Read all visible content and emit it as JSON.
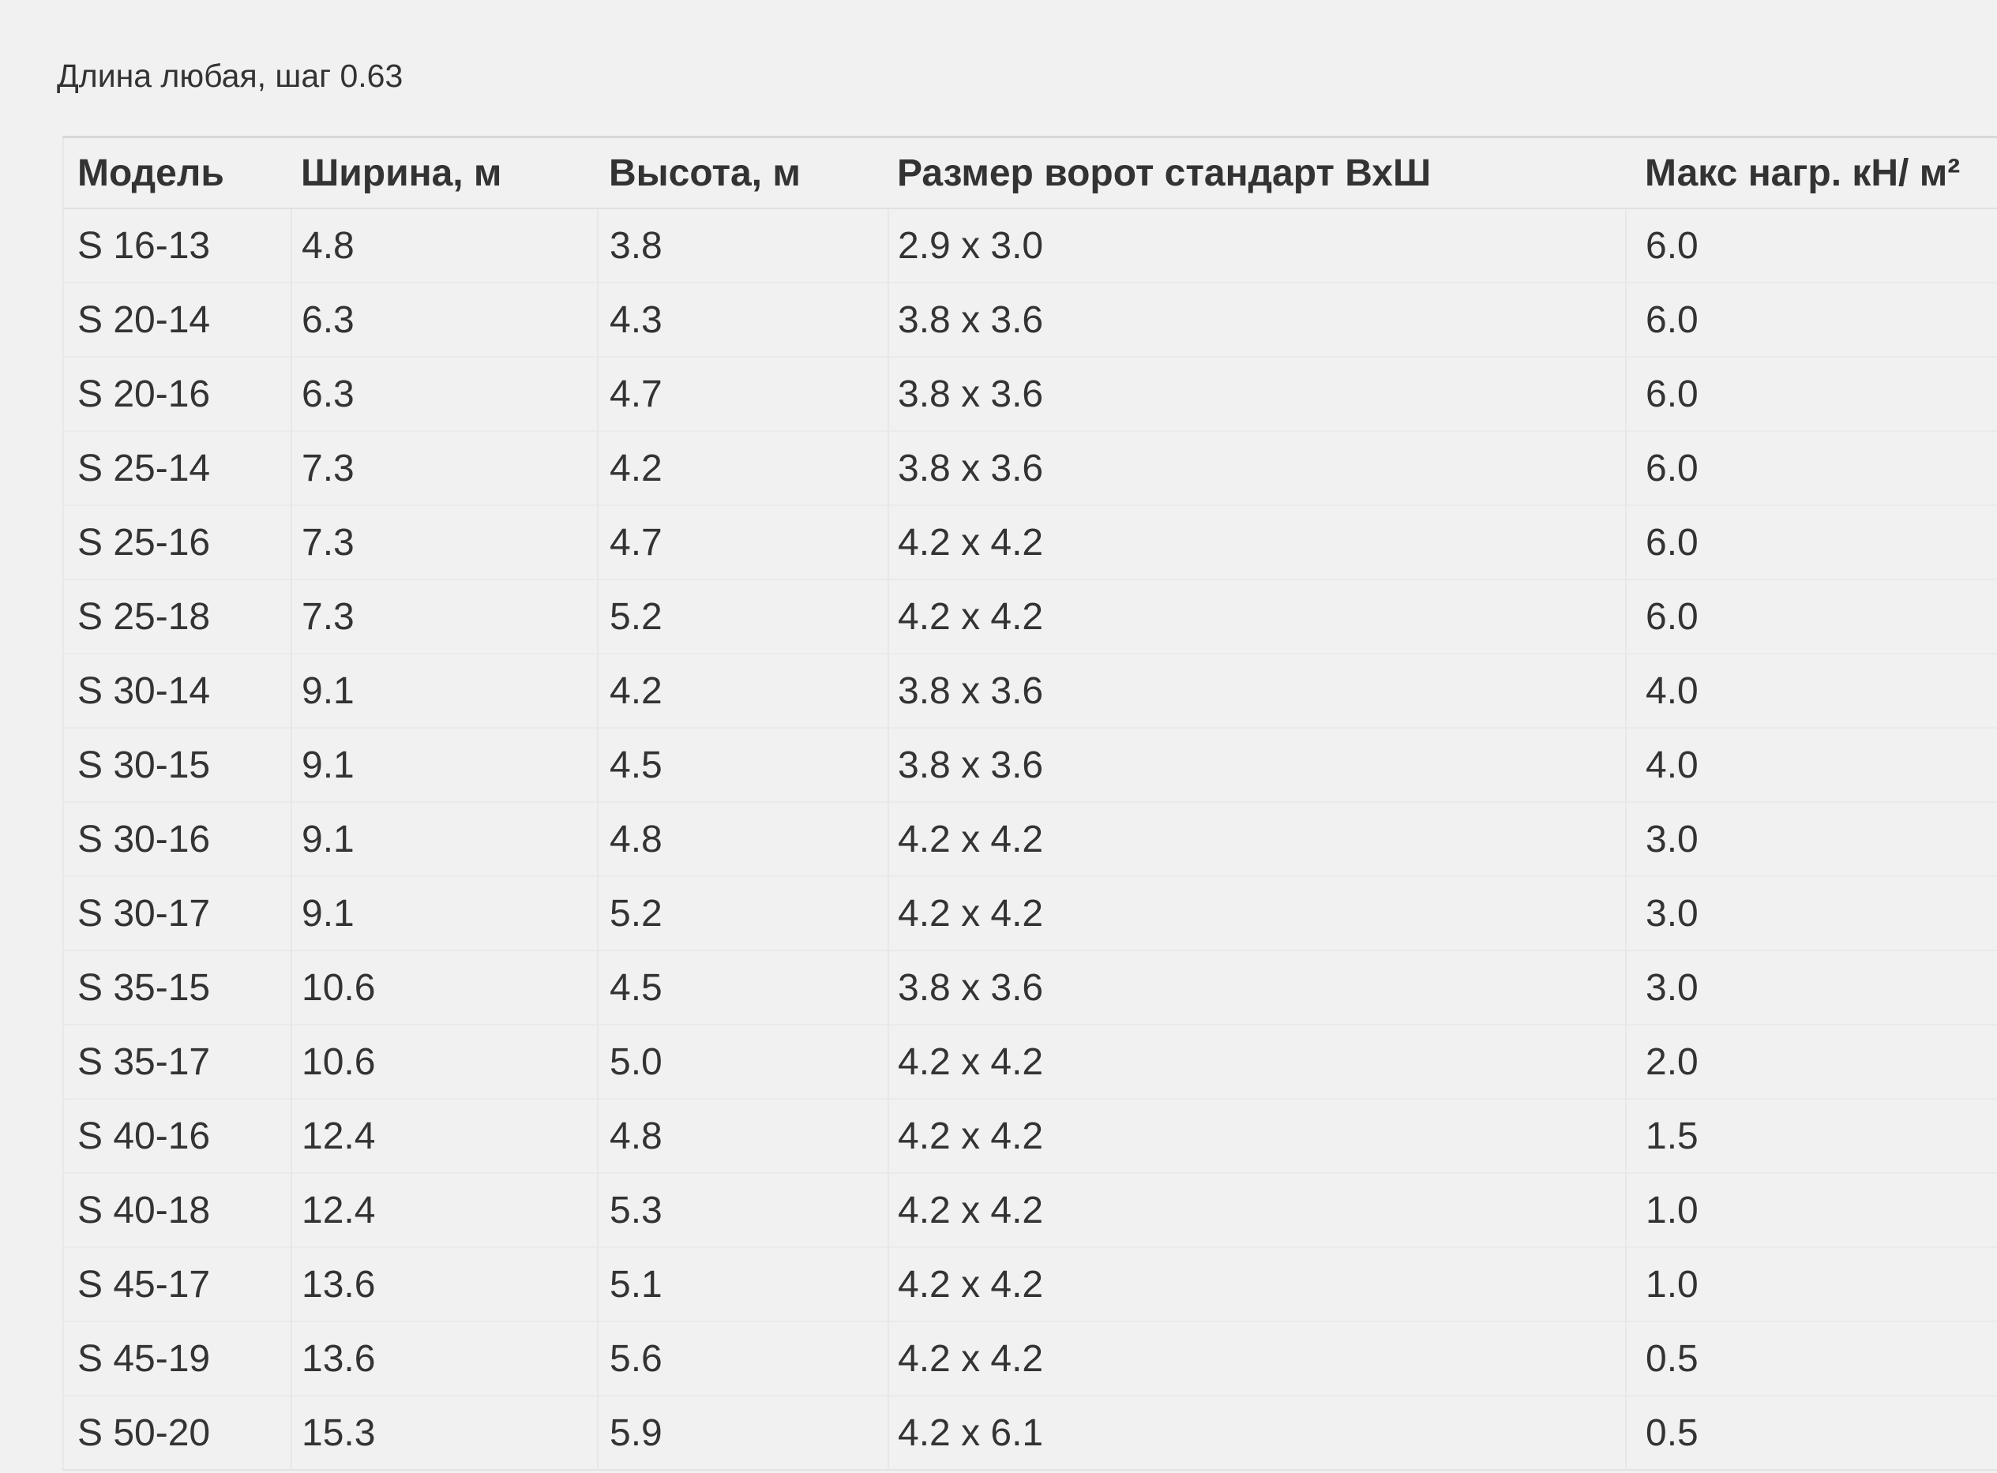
{
  "page": {
    "note": "Длина любая, шаг 0.63"
  },
  "colors": {
    "background": "#f1f1f1",
    "text": "#333333",
    "table_top_border": "#d8d8d8",
    "table_inner_border": "#e7e7e7"
  },
  "table": {
    "columns": [
      "Модель",
      "Ширина, м",
      "Высота, м",
      "Размер ворот стандарт ВхШ",
      "Макс нагр. кН/ м²"
    ],
    "rows": [
      [
        "S 16-13",
        "4.8",
        "3.8",
        "2.9 x 3.0",
        "6.0"
      ],
      [
        "S 20-14",
        "6.3",
        "4.3",
        "3.8 x 3.6",
        "6.0"
      ],
      [
        "S 20-16",
        "6.3",
        "4.7",
        "3.8 x 3.6",
        "6.0"
      ],
      [
        "S 25-14",
        "7.3",
        "4.2",
        "3.8 x 3.6",
        "6.0"
      ],
      [
        "S 25-16",
        "7.3",
        "4.7",
        "4.2 x 4.2",
        "6.0"
      ],
      [
        "S 25-18",
        "7.3",
        "5.2",
        "4.2 x 4.2",
        "6.0"
      ],
      [
        "S 30-14",
        "9.1",
        "4.2",
        "3.8 x 3.6",
        "4.0"
      ],
      [
        "S 30-15",
        "9.1",
        "4.5",
        "3.8 x 3.6",
        "4.0"
      ],
      [
        "S 30-16",
        "9.1",
        "4.8",
        "4.2 x 4.2",
        "3.0"
      ],
      [
        "S 30-17",
        "9.1",
        "5.2",
        "4.2 x 4.2",
        "3.0"
      ],
      [
        "S 35-15",
        "10.6",
        "4.5",
        "3.8 x 3.6",
        "3.0"
      ],
      [
        "S 35-17",
        "10.6",
        "5.0",
        "4.2 x 4.2",
        "2.0"
      ],
      [
        "S 40-16",
        "12.4",
        "4.8",
        "4.2 x 4.2",
        "1.5"
      ],
      [
        "S 40-18",
        "12.4",
        "5.3",
        "4.2 x 4.2",
        "1.0"
      ],
      [
        "S 45-17",
        "13.6",
        "5.1",
        "4.2 x 4.2",
        "1.0"
      ],
      [
        "S 45-19",
        "13.6",
        "5.6",
        "4.2 x 4.2",
        "0.5"
      ],
      [
        "S 50-20",
        "15.3",
        "5.9",
        "4.2 x 6.1",
        "0.5"
      ]
    ]
  }
}
